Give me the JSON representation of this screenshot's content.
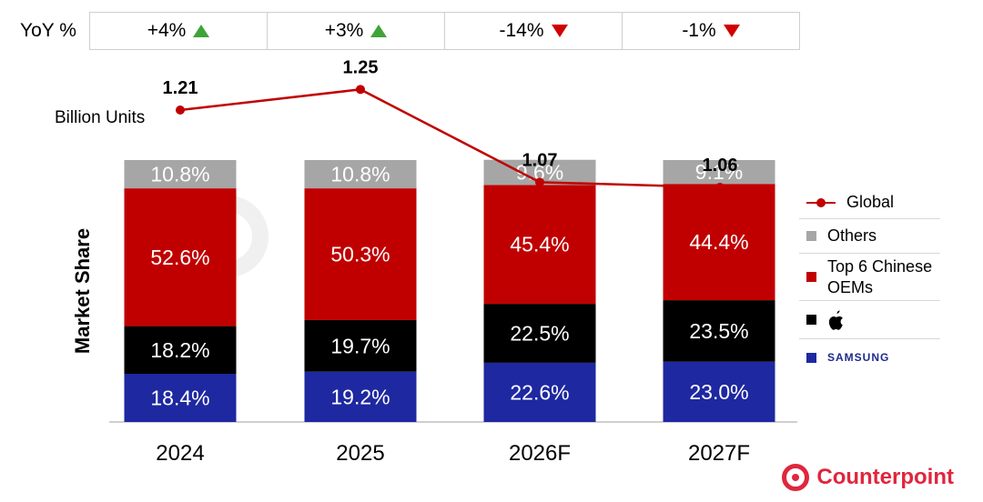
{
  "yoy": {
    "label": "YoY %",
    "values": [
      {
        "text": "+4%",
        "direction": "up"
      },
      {
        "text": "+3%",
        "direction": "up"
      },
      {
        "text": "-14%",
        "direction": "down"
      },
      {
        "text": "-1%",
        "direction": "down"
      }
    ]
  },
  "chart_data": {
    "type": "bar",
    "stacked": true,
    "categories": [
      "2024",
      "2025",
      "2026F",
      "2027F"
    ],
    "ylabel": "Market Share",
    "ylim": [
      0,
      100
    ],
    "series": [
      {
        "name": "Samsung",
        "color": "#1e28a0",
        "values": [
          18.4,
          19.2,
          22.6,
          23.0
        ],
        "labels": [
          "18.4%",
          "19.2%",
          "22.6%",
          "23.0%"
        ]
      },
      {
        "name": "Apple",
        "color": "#000000",
        "values": [
          18.2,
          19.7,
          22.5,
          23.5
        ],
        "labels": [
          "18.2%",
          "19.7%",
          "22.5%",
          "23.5%"
        ]
      },
      {
        "name": "Top 6 Chinese OEMs",
        "color": "#c00000",
        "values": [
          52.6,
          50.3,
          45.4,
          44.4
        ],
        "labels": [
          "52.6%",
          "50.3%",
          "45.4%",
          "44.4%"
        ]
      },
      {
        "name": "Others",
        "color": "#a6a6a6",
        "values": [
          10.8,
          10.8,
          9.6,
          9.1
        ],
        "labels": [
          "10.8%",
          "10.8%",
          "9.6%",
          "9.1%"
        ]
      }
    ],
    "line": {
      "name": "Global",
      "unit_label": "Billion Units",
      "color": "#c00000",
      "values": [
        1.21,
        1.25,
        1.07,
        1.06
      ],
      "labels": [
        "1.21",
        "1.25",
        "1.07",
        "1.06"
      ]
    },
    "grid": false
  },
  "legend": {
    "items": [
      {
        "label": "Global",
        "kind": "line",
        "color": "#c00000"
      },
      {
        "label": "Others",
        "kind": "square",
        "color": "#a6a6a6"
      },
      {
        "label": "Top 6 Chinese OEMs",
        "kind": "square",
        "color": "#c00000"
      },
      {
        "label": "",
        "kind": "apple-logo",
        "color": "#000000"
      },
      {
        "label": "SAMSUNG",
        "kind": "samsung-logo",
        "color": "#1e28a0"
      }
    ]
  },
  "brand": {
    "name": "Counterpoint",
    "color": "#e0263d"
  }
}
